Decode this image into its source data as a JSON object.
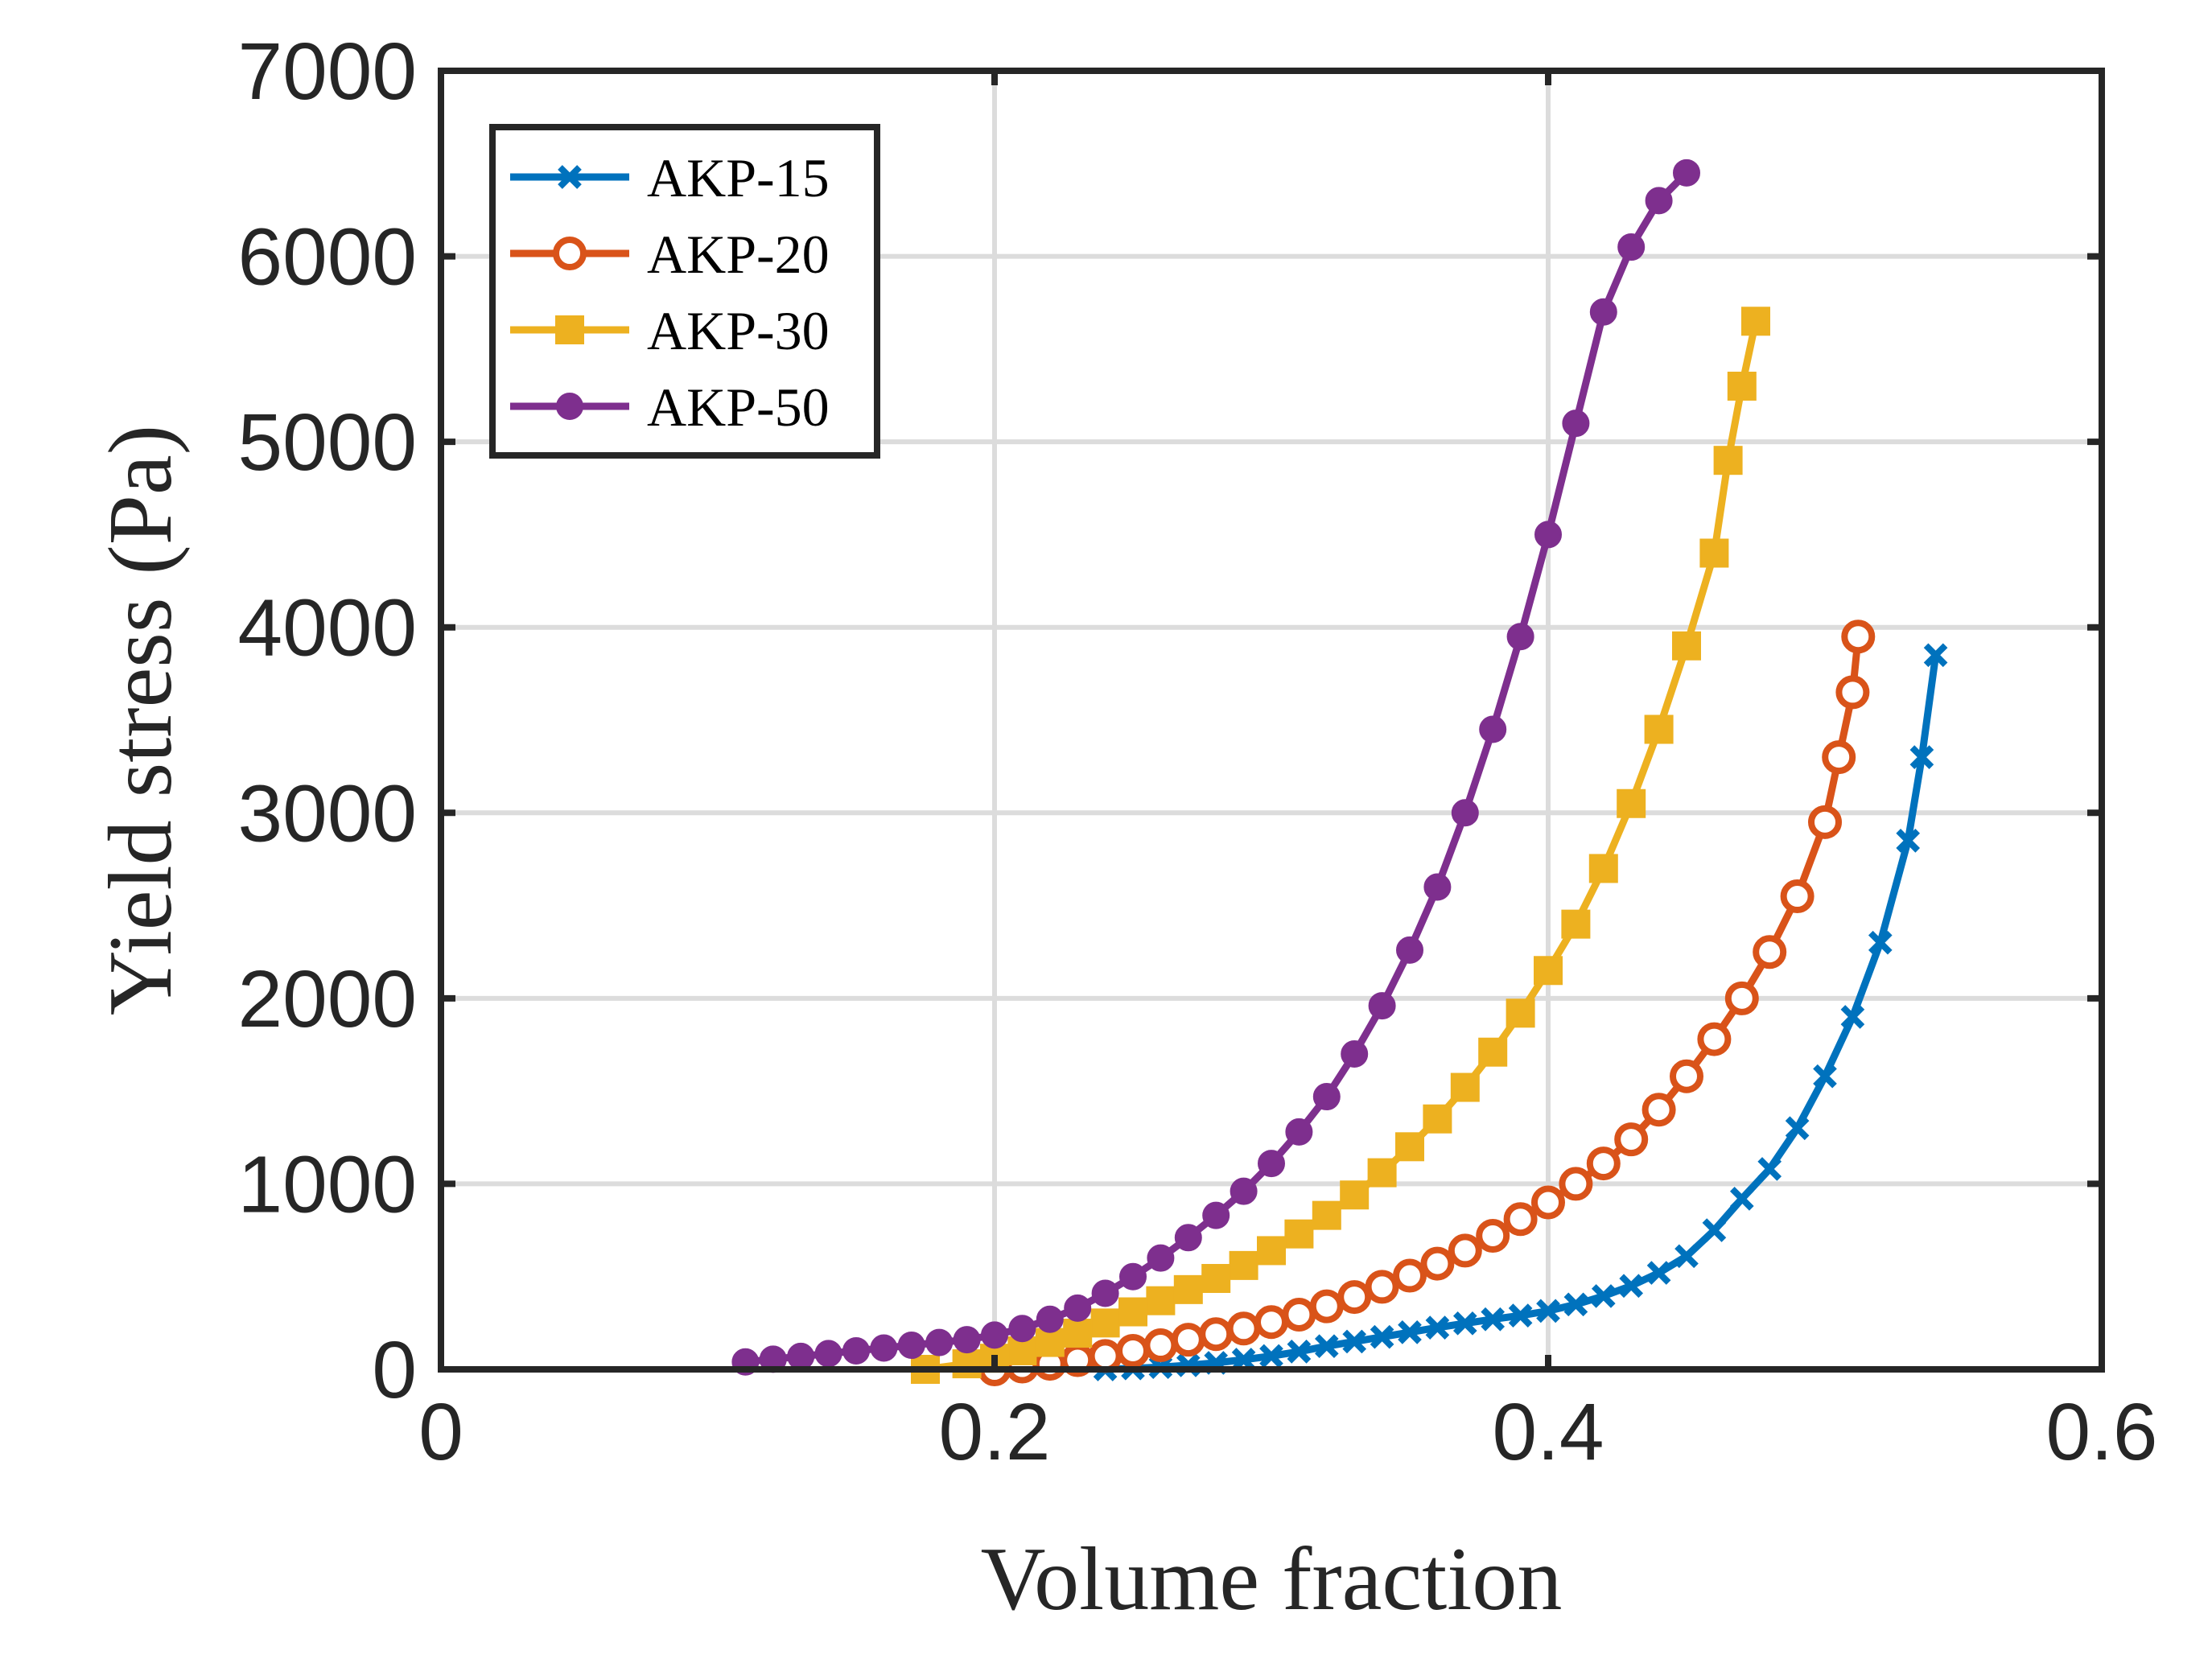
{
  "chart_data": {
    "type": "line",
    "title": "",
    "xlabel": "Volume fraction",
    "ylabel": "Yield stress (Pa)",
    "xlim": [
      0,
      0.6
    ],
    "ylim": [
      0,
      7000
    ],
    "xticks": [
      0,
      0.2,
      0.4,
      0.6
    ],
    "xtick_labels": [
      "0",
      "0.2",
      "0.4",
      "0.6"
    ],
    "yticks": [
      0,
      1000,
      2000,
      3000,
      4000,
      5000,
      6000,
      7000
    ],
    "ytick_labels": [
      "0",
      "1000",
      "2000",
      "3000",
      "4000",
      "5000",
      "6000",
      "7000"
    ],
    "grid": true,
    "legend_position": "top-left",
    "series": [
      {
        "name": "AKP-15",
        "color": "#0072BD",
        "marker": "x",
        "points": [
          [
            0.24,
            0
          ],
          [
            0.25,
            5
          ],
          [
            0.26,
            12
          ],
          [
            0.27,
            22
          ],
          [
            0.28,
            35
          ],
          [
            0.29,
            52
          ],
          [
            0.3,
            72
          ],
          [
            0.31,
            96
          ],
          [
            0.32,
            125
          ],
          [
            0.33,
            150
          ],
          [
            0.34,
            175
          ],
          [
            0.35,
            200
          ],
          [
            0.36,
            225
          ],
          [
            0.37,
            248
          ],
          [
            0.38,
            270
          ],
          [
            0.39,
            290
          ],
          [
            0.4,
            315
          ],
          [
            0.41,
            350
          ],
          [
            0.42,
            395
          ],
          [
            0.43,
            450
          ],
          [
            0.44,
            520
          ],
          [
            0.45,
            610
          ],
          [
            0.46,
            750
          ],
          [
            0.47,
            920
          ],
          [
            0.48,
            1080
          ],
          [
            0.49,
            1300
          ],
          [
            0.5,
            1580
          ],
          [
            0.51,
            1900
          ],
          [
            0.52,
            2300
          ],
          [
            0.53,
            2850
          ],
          [
            0.535,
            3300
          ],
          [
            0.54,
            3850
          ]
        ]
      },
      {
        "name": "AKP-20",
        "color": "#D95319",
        "marker": "o",
        "points": [
          [
            0.2,
            0
          ],
          [
            0.21,
            15
          ],
          [
            0.22,
            30
          ],
          [
            0.23,
            50
          ],
          [
            0.24,
            72
          ],
          [
            0.25,
            100
          ],
          [
            0.26,
            130
          ],
          [
            0.27,
            160
          ],
          [
            0.28,
            190
          ],
          [
            0.29,
            220
          ],
          [
            0.3,
            255
          ],
          [
            0.31,
            295
          ],
          [
            0.32,
            340
          ],
          [
            0.33,
            390
          ],
          [
            0.34,
            445
          ],
          [
            0.35,
            505
          ],
          [
            0.36,
            570
          ],
          [
            0.37,
            640
          ],
          [
            0.38,
            720
          ],
          [
            0.39,
            810
          ],
          [
            0.4,
            900
          ],
          [
            0.41,
            1000
          ],
          [
            0.42,
            1110
          ],
          [
            0.43,
            1240
          ],
          [
            0.44,
            1400
          ],
          [
            0.45,
            1580
          ],
          [
            0.46,
            1780
          ],
          [
            0.47,
            2000
          ],
          [
            0.48,
            2250
          ],
          [
            0.49,
            2550
          ],
          [
            0.5,
            2950
          ],
          [
            0.505,
            3300
          ],
          [
            0.51,
            3650
          ],
          [
            0.512,
            3950
          ]
        ]
      },
      {
        "name": "AKP-30",
        "color": "#EDB120",
        "marker": "s",
        "points": [
          [
            0.175,
            0
          ],
          [
            0.19,
            30
          ],
          [
            0.2,
            60
          ],
          [
            0.21,
            100
          ],
          [
            0.22,
            145
          ],
          [
            0.23,
            195
          ],
          [
            0.24,
            250
          ],
          [
            0.25,
            310
          ],
          [
            0.26,
            370
          ],
          [
            0.27,
            430
          ],
          [
            0.28,
            490
          ],
          [
            0.29,
            560
          ],
          [
            0.3,
            640
          ],
          [
            0.31,
            730
          ],
          [
            0.32,
            830
          ],
          [
            0.33,
            940
          ],
          [
            0.34,
            1060
          ],
          [
            0.35,
            1200
          ],
          [
            0.36,
            1350
          ],
          [
            0.37,
            1520
          ],
          [
            0.38,
            1710
          ],
          [
            0.39,
            1920
          ],
          [
            0.4,
            2150
          ],
          [
            0.41,
            2400
          ],
          [
            0.42,
            2700
          ],
          [
            0.43,
            3050
          ],
          [
            0.44,
            3450
          ],
          [
            0.45,
            3900
          ],
          [
            0.46,
            4400
          ],
          [
            0.465,
            4900
          ],
          [
            0.47,
            5300
          ],
          [
            0.475,
            5650
          ]
        ]
      },
      {
        "name": "AKP-50",
        "color": "#7E2F8E",
        "marker": "o-filled",
        "points": [
          [
            0.11,
            40
          ],
          [
            0.12,
            55
          ],
          [
            0.13,
            70
          ],
          [
            0.14,
            85
          ],
          [
            0.15,
            100
          ],
          [
            0.16,
            115
          ],
          [
            0.17,
            130
          ],
          [
            0.18,
            145
          ],
          [
            0.19,
            160
          ],
          [
            0.2,
            185
          ],
          [
            0.21,
            220
          ],
          [
            0.22,
            270
          ],
          [
            0.23,
            330
          ],
          [
            0.24,
            410
          ],
          [
            0.25,
            500
          ],
          [
            0.26,
            600
          ],
          [
            0.27,
            710
          ],
          [
            0.28,
            830
          ],
          [
            0.29,
            960
          ],
          [
            0.3,
            1110
          ],
          [
            0.31,
            1280
          ],
          [
            0.32,
            1470
          ],
          [
            0.33,
            1700
          ],
          [
            0.34,
            1960
          ],
          [
            0.35,
            2260
          ],
          [
            0.36,
            2600
          ],
          [
            0.37,
            3000
          ],
          [
            0.38,
            3450
          ],
          [
            0.39,
            3950
          ],
          [
            0.4,
            4500
          ],
          [
            0.41,
            5100
          ],
          [
            0.42,
            5700
          ],
          [
            0.43,
            6050
          ],
          [
            0.44,
            6300
          ],
          [
            0.45,
            6450
          ]
        ]
      }
    ]
  }
}
